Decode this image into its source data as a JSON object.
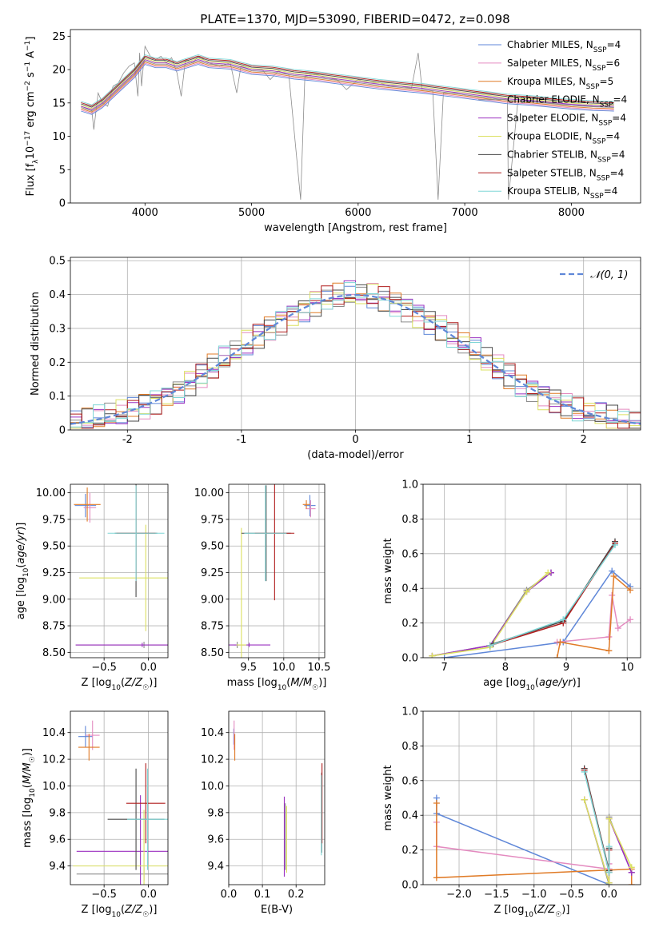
{
  "figure": {
    "title": "PLATE=1370, MJD=53090, FIBERID=0472, z=0.098"
  },
  "colors": {
    "Chabrier MILES": "#5f87d8",
    "Salpeter MILES": "#e48bc0",
    "Kroupa MILES": "#e07b27",
    "Chabrier ELODIE": "#8c8c8c",
    "Salpeter ELODIE": "#9b30c0",
    "Kroupa ELODIE": "#dbe060",
    "Chabrier STELIB": "#4a4a4a",
    "Salpeter STELIB": "#b01d1d",
    "Kroupa STELIB": "#7fd6d6"
  },
  "chart_data": [
    {
      "id": "spectrum",
      "type": "line",
      "xlabel": "wavelength [Angstrom, rest frame]",
      "ylabel": "Flux [f_λ 10^-17 erg cm^-2 s^-1 A^-1]",
      "xlim": [
        3300,
        8650
      ],
      "ylim": [
        0,
        26
      ],
      "xticks": [
        4000,
        5000,
        6000,
        7000,
        8000
      ],
      "yticks": [
        0,
        5,
        10,
        15,
        20,
        25
      ],
      "grid": false,
      "legend_position": "top-right",
      "legend": [
        {
          "model": "Chabrier MILES",
          "nssp": "4"
        },
        {
          "model": "Salpeter MILES",
          "nssp": "6"
        },
        {
          "model": "Kroupa MILES",
          "nssp": "5"
        },
        {
          "model": "Chabrier ELODIE",
          "nssp": "4"
        },
        {
          "model": "Salpeter ELODIE",
          "nssp": "4"
        },
        {
          "model": "Kroupa ELODIE",
          "nssp": "4"
        },
        {
          "model": "Chabrier STELIB",
          "nssp": "4"
        },
        {
          "model": "Salpeter STELIB",
          "nssp": "4"
        },
        {
          "model": "Kroupa STELIB",
          "nssp": "4"
        }
      ],
      "data_series": {
        "name": "data",
        "color": "#8c8c8c",
        "x": [
          3400,
          3450,
          3500,
          3520,
          3560,
          3600,
          3650,
          3700,
          3750,
          3800,
          3850,
          3900,
          3933,
          3950,
          3968,
          4000,
          4050,
          4100,
          4150,
          4200,
          4250,
          4300,
          4340,
          4380,
          4450,
          4500,
          4600,
          4700,
          4800,
          4861,
          4900,
          5000,
          5100,
          5175,
          5250,
          5350,
          5460,
          5500,
          5600,
          5700,
          5800,
          5890,
          6000,
          6100,
          6200,
          6300,
          6400,
          6500,
          6563,
          6600,
          6700,
          6750,
          6800,
          6900,
          7000,
          7100,
          7200,
          7300,
          7400,
          7410,
          7500,
          7600,
          7700,
          7800,
          7900,
          8000,
          8100,
          8200,
          8300,
          8400
        ],
        "y": [
          14.5,
          14.2,
          14.0,
          11.0,
          16.5,
          15.0,
          14.5,
          17.5,
          18.0,
          19.5,
          20.5,
          21.0,
          16.0,
          22.5,
          17.5,
          23.5,
          22.0,
          21.5,
          22.0,
          21.0,
          21.8,
          19.5,
          16.0,
          21.5,
          21.0,
          22.0,
          21.0,
          20.5,
          21.0,
          16.5,
          20.5,
          20.0,
          20.0,
          18.5,
          19.8,
          19.2,
          0.5,
          19.0,
          19.3,
          18.8,
          18.5,
          17.0,
          18.5,
          18.0,
          18.0,
          17.5,
          17.5,
          17.2,
          22.5,
          17.0,
          16.8,
          0.5,
          16.5,
          16.5,
          16.2,
          16.0,
          15.8,
          15.6,
          15.5,
          0.5,
          15.5,
          15.3,
          15.2,
          15.0,
          14.8,
          14.8,
          14.6,
          14.5,
          14.4,
          14.5
        ]
      },
      "model_series": {
        "name": "models",
        "x": [
          3400,
          3500,
          3600,
          3700,
          3800,
          3900,
          4000,
          4100,
          4200,
          4300,
          4400,
          4500,
          4600,
          4800,
          5000,
          5200,
          5400,
          5600,
          5800,
          6000,
          6200,
          6400,
          6600,
          6800,
          7000,
          7200,
          7400,
          7600,
          7800,
          8000,
          8200,
          8400
        ],
        "y": [
          14.5,
          14.0,
          15.0,
          16.5,
          18.0,
          19.5,
          21.5,
          21.0,
          21.0,
          20.5,
          21.0,
          21.5,
          21.0,
          20.8,
          20.0,
          19.8,
          19.3,
          19.0,
          18.6,
          18.2,
          17.8,
          17.5,
          17.2,
          16.8,
          16.4,
          16.0,
          15.6,
          15.4,
          15.1,
          14.8,
          14.6,
          14.5
        ]
      }
    },
    {
      "id": "residuals",
      "type": "histogram",
      "xlabel": "(data-model)/error",
      "ylabel": "Normed distribution",
      "xlim": [
        -2.5,
        2.5
      ],
      "ylim": [
        0,
        0.51
      ],
      "xticks": [
        -2,
        -1,
        0,
        1,
        2
      ],
      "yticks": [
        0.0,
        0.1,
        0.2,
        0.3,
        0.4,
        0.5
      ],
      "grid": true,
      "legend_position": "top-right",
      "legend_label": "N(0,1)",
      "bin_width": 0.1,
      "bins_from": -2.5,
      "reference_curve": {
        "name": "N(0,1)",
        "mean": 0,
        "sigma": 1,
        "color": "#5f87d8"
      }
    },
    {
      "id": "age_vs_Z",
      "type": "scatter",
      "xlabel": "Z [log10(Z/Z☉)]",
      "ylabel": "age [log10(age/yr)]",
      "xlim": [
        -0.88,
        0.22
      ],
      "ylim": [
        8.45,
        10.08
      ],
      "xticks": [
        -0.5,
        0.0
      ],
      "xtick_labels": [
        "−0.5",
        "0.0"
      ],
      "yticks": [
        8.5,
        8.75,
        9.0,
        9.25,
        9.5,
        9.75,
        10.0
      ],
      "ytick_labels": [
        "8.50",
        "8.75",
        "9.00",
        "9.25",
        "9.50",
        "9.75",
        "10.00"
      ],
      "grid": true,
      "points": [
        {
          "model": "Chabrier MILES",
          "x": -0.71,
          "y": 9.88,
          "xerr": 0.12,
          "yerr": 0.11
        },
        {
          "model": "Salpeter MILES",
          "x": -0.66,
          "y": 9.86,
          "xerr": 0.07,
          "yerr": 0.14
        },
        {
          "model": "Kroupa MILES",
          "x": -0.69,
          "y": 9.89,
          "xerr": 0.15,
          "yerr": 0.16
        },
        {
          "model": "Chabrier ELODIE",
          "x": -0.05,
          "y": 8.57,
          "xerr": 0.77,
          "yerr": 0.03
        },
        {
          "model": "Salpeter ELODIE",
          "x": -0.07,
          "y": 8.57,
          "xerr": 0.75,
          "yerr": 0.02
        },
        {
          "model": "Kroupa ELODIE",
          "x": -0.03,
          "y": 9.2,
          "xerr": 0.75,
          "yerr": 0.5
        },
        {
          "model": "Chabrier STELIB",
          "x": -0.14,
          "y": 9.62,
          "xerr": 0.24,
          "yerr": 0.6
        },
        {
          "model": "Salpeter STELIB",
          "x": -0.14,
          "y": 9.62,
          "xerr": 0.22,
          "yerr": 0.45
        },
        {
          "model": "Kroupa STELIB",
          "x": -0.14,
          "y": 9.62,
          "xerr": 0.32,
          "yerr": 0.45
        }
      ]
    },
    {
      "id": "age_vs_mass",
      "type": "scatter",
      "xlabel": "mass [log10(M/M☉)]",
      "ylabel": "",
      "xlim": [
        9.22,
        10.58
      ],
      "ylim": [
        8.45,
        10.08
      ],
      "xticks": [
        9.5,
        10.0,
        10.5
      ],
      "xtick_labels": [
        "9.5",
        "10.0",
        "10.5"
      ],
      "yticks": [
        8.5,
        8.75,
        9.0,
        9.25,
        9.5,
        9.75,
        10.0
      ],
      "ytick_labels": [
        "8.50",
        "8.75",
        "9.00",
        "9.25",
        "9.50",
        "9.75",
        "10.00"
      ],
      "grid": true,
      "points": [
        {
          "model": "Chabrier MILES",
          "x": 10.37,
          "y": 9.88,
          "xerr": 0.08,
          "yerr": 0.1
        },
        {
          "model": "Salpeter MILES",
          "x": 10.38,
          "y": 9.85,
          "xerr": 0.07,
          "yerr": 0.08
        },
        {
          "model": "Kroupa MILES",
          "x": 10.32,
          "y": 9.89,
          "xerr": 0.05,
          "yerr": 0.04
        },
        {
          "model": "Chabrier ELODIE",
          "x": 9.34,
          "y": 8.57,
          "xerr": 0.04,
          "yerr": 0.03
        },
        {
          "model": "Salpeter ELODIE",
          "x": 9.51,
          "y": 8.57,
          "xerr": 0.3,
          "yerr": 0.02
        },
        {
          "model": "Kroupa ELODIE",
          "x": 9.4,
          "y": 8.57,
          "xerr": 0.07,
          "yerr": 1.1
        },
        {
          "model": "Chabrier STELIB",
          "x": 9.75,
          "y": 9.62,
          "xerr": 0.35,
          "yerr": 0.45
        },
        {
          "model": "Salpeter STELIB",
          "x": 9.87,
          "y": 9.62,
          "xerr": 0.28,
          "yerr": 0.63
        },
        {
          "model": "Kroupa STELIB",
          "x": 9.74,
          "y": 9.62,
          "xerr": 0.3,
          "yerr": 0.45
        }
      ]
    },
    {
      "id": "mass_vs_Z",
      "type": "scatter",
      "xlabel": "Z [log10(Z/Z☉)]",
      "ylabel": "mass [log10(M/M☉)]",
      "xlim": [
        -0.88,
        0.22
      ],
      "ylim": [
        9.26,
        10.56
      ],
      "xticks": [
        -0.5,
        0.0
      ],
      "xtick_labels": [
        "−0.5",
        "0.0"
      ],
      "yticks": [
        9.4,
        9.6,
        9.8,
        10.0,
        10.2,
        10.4
      ],
      "ytick_labels": [
        "9.4",
        "9.6",
        "9.8",
        "10.0",
        "10.2",
        "10.4"
      ],
      "grid": true,
      "points": [
        {
          "model": "Chabrier MILES",
          "x": -0.71,
          "y": 10.37,
          "xerr": 0.08,
          "yerr": 0.08
        },
        {
          "model": "Salpeter MILES",
          "x": -0.63,
          "y": 10.38,
          "xerr": 0.08,
          "yerr": 0.11
        },
        {
          "model": "Kroupa MILES",
          "x": -0.67,
          "y": 10.29,
          "xerr": 0.12,
          "yerr": 0.1
        },
        {
          "model": "Chabrier ELODIE",
          "x": -0.05,
          "y": 9.34,
          "xerr": 0.76,
          "yerr": 0.05
        },
        {
          "model": "Salpeter ELODIE",
          "x": -0.09,
          "y": 9.51,
          "xerr": 0.72,
          "yerr": 0.42
        },
        {
          "model": "Kroupa ELODIE",
          "x": -0.05,
          "y": 9.4,
          "xerr": 0.8,
          "yerr": 0.42
        },
        {
          "model": "Chabrier STELIB",
          "x": -0.14,
          "y": 9.75,
          "xerr": 0.32,
          "yerr": 0.38
        },
        {
          "model": "Salpeter STELIB",
          "x": -0.03,
          "y": 9.87,
          "xerr": 0.22,
          "yerr": 0.3
        },
        {
          "model": "Kroupa STELIB",
          "x": -0.01,
          "y": 9.75,
          "xerr": 0.23,
          "yerr": 0.38
        }
      ]
    },
    {
      "id": "mass_vs_EBV",
      "type": "scatter",
      "xlabel": "E(B-V)",
      "ylabel": "",
      "xlim": [
        0.0,
        0.285
      ],
      "ylim": [
        9.26,
        10.56
      ],
      "xticks": [
        0.0,
        0.1,
        0.2
      ],
      "xtick_labels": [
        "0.0",
        "0.1",
        "0.2"
      ],
      "yticks": [
        9.4,
        9.6,
        9.8,
        10.0,
        10.2,
        10.4
      ],
      "ytick_labels": [
        "9.4",
        "9.6",
        "9.8",
        "10.0",
        "10.2",
        "10.4"
      ],
      "grid": true,
      "points": [
        {
          "model": "Chabrier MILES",
          "x": 0.015,
          "y": 10.37,
          "xerr": 0,
          "yerr": 0.06
        },
        {
          "model": "Salpeter MILES",
          "x": 0.016,
          "y": 10.38,
          "xerr": 0,
          "yerr": 0.11
        },
        {
          "model": "Kroupa MILES",
          "x": 0.018,
          "y": 10.29,
          "xerr": 0,
          "yerr": 0.1
        },
        {
          "model": "Chabrier ELODIE",
          "x": 0.168,
          "y": 9.62,
          "xerr": 0,
          "yerr": 0.25
        },
        {
          "model": "Salpeter ELODIE",
          "x": 0.165,
          "y": 9.62,
          "xerr": 0,
          "yerr": 0.3
        },
        {
          "model": "Kroupa ELODIE",
          "x": 0.172,
          "y": 9.6,
          "xerr": 0,
          "yerr": 0.25
        },
        {
          "model": "Chabrier STELIB",
          "x": 0.276,
          "y": 9.8,
          "xerr": 0,
          "yerr": 0.3
        },
        {
          "model": "Salpeter STELIB",
          "x": 0.277,
          "y": 9.87,
          "xerr": 0,
          "yerr": 0.3
        },
        {
          "model": "Kroupa STELIB",
          "x": 0.275,
          "y": 9.78,
          "xerr": 0,
          "yerr": 0.3
        }
      ]
    },
    {
      "id": "weight_vs_age",
      "type": "line",
      "xlabel": "age [log10(age/yr)]",
      "ylabel": "mass weight",
      "xlim": [
        6.65,
        10.22
      ],
      "ylim": [
        0,
        1.0
      ],
      "xticks": [
        7,
        8,
        9,
        10
      ],
      "xtick_labels": [
        "7",
        "8",
        "9",
        "10"
      ],
      "yticks": [
        0.0,
        0.2,
        0.4,
        0.6,
        0.8,
        1.0
      ],
      "ytick_labels": [
        "0.0",
        "0.2",
        "0.4",
        "0.6",
        "0.8",
        "1.0"
      ],
      "grid": true,
      "series": [
        {
          "model": "Chabrier MILES",
          "x": [
            7.0,
            8.95,
            9.75,
            10.05
          ],
          "y": [
            0.0,
            0.09,
            0.5,
            0.41
          ]
        },
        {
          "model": "Salpeter MILES",
          "x": [
            8.85,
            9.7,
            9.75,
            9.85,
            10.05
          ],
          "y": [
            0.09,
            0.12,
            0.36,
            0.17,
            0.22
          ]
        },
        {
          "model": "Kroupa MILES",
          "x": [
            8.85,
            8.9,
            9.7,
            9.78,
            10.05
          ],
          "y": [
            0.0,
            0.09,
            0.04,
            0.47,
            0.39
          ]
        },
        {
          "model": "Chabrier ELODIE",
          "x": [
            6.8,
            7.75,
            8.35,
            8.75
          ],
          "y": [
            0.01,
            0.07,
            0.39,
            0.49
          ]
        },
        {
          "model": "Salpeter ELODIE",
          "x": [
            6.8,
            7.75,
            8.35,
            8.75
          ],
          "y": [
            0.01,
            0.07,
            0.38,
            0.49
          ]
        },
        {
          "model": "Kroupa ELODIE",
          "x": [
            6.8,
            7.75,
            8.35,
            8.7
          ],
          "y": [
            0.01,
            0.06,
            0.38,
            0.49
          ]
        },
        {
          "model": "Chabrier STELIB",
          "x": [
            7.8,
            8.95,
            9.8
          ],
          "y": [
            0.08,
            0.21,
            0.67
          ]
        },
        {
          "model": "Salpeter STELIB",
          "x": [
            7.75,
            8.95,
            9.8
          ],
          "y": [
            0.07,
            0.2,
            0.66
          ]
        },
        {
          "model": "Kroupa STELIB",
          "x": [
            7.75,
            8.95,
            9.8
          ],
          "y": [
            0.07,
            0.22,
            0.65
          ]
        }
      ]
    },
    {
      "id": "weight_vs_Z",
      "type": "line",
      "xlabel": "Z [log10(Z/Z☉)]",
      "ylabel": "mass weight",
      "xlim": [
        -2.48,
        0.42
      ],
      "ylim": [
        0,
        1.0
      ],
      "xticks": [
        -2.0,
        -1.5,
        -1.0,
        -0.5,
        0.0
      ],
      "xtick_labels": [
        "−2.0",
        "−1.5",
        "−1.0",
        "−0.5",
        "0.0"
      ],
      "yticks": [
        0.0,
        0.2,
        0.4,
        0.6,
        0.8,
        1.0
      ],
      "ytick_labels": [
        "0.0",
        "0.2",
        "0.4",
        "0.6",
        "0.8",
        "1.0"
      ],
      "grid": true,
      "series": [
        {
          "model": "Chabrier MILES",
          "x": [
            -2.3,
            -2.3,
            0.0,
            0.0
          ],
          "y": [
            0.5,
            0.41,
            0.0,
            0.09
          ]
        },
        {
          "model": "Salpeter MILES",
          "x": [
            -2.3,
            -2.3,
            0.0,
            0.0
          ],
          "y": [
            0.36,
            0.22,
            0.09,
            0.12
          ]
        },
        {
          "model": "Kroupa MILES",
          "x": [
            -2.3,
            -2.3,
            0.3,
            0.3
          ],
          "y": [
            0.47,
            0.04,
            0.09,
            0.0
          ]
        },
        {
          "model": "Chabrier ELODIE",
          "x": [
            -0.33,
            0.0,
            0.0,
            0.3
          ],
          "y": [
            0.49,
            0.0,
            0.39,
            0.07
          ]
        },
        {
          "model": "Salpeter ELODIE",
          "x": [
            -0.33,
            0.0,
            0.0,
            0.3
          ],
          "y": [
            0.49,
            0.01,
            0.38,
            0.07
          ]
        },
        {
          "model": "Kroupa ELODIE",
          "x": [
            -0.33,
            0.0,
            0.0,
            0.3
          ],
          "y": [
            0.49,
            0.01,
            0.38,
            0.1
          ]
        },
        {
          "model": "Chabrier STELIB",
          "x": [
            -0.33,
            0.0,
            0.0
          ],
          "y": [
            0.67,
            0.08,
            0.21
          ]
        },
        {
          "model": "Salpeter STELIB",
          "x": [
            -0.33,
            0.0,
            0.0
          ],
          "y": [
            0.66,
            0.07,
            0.2
          ]
        },
        {
          "model": "Kroupa STELIB",
          "x": [
            -0.33,
            0.0,
            0.0
          ],
          "y": [
            0.65,
            0.07,
            0.22
          ]
        }
      ]
    }
  ]
}
